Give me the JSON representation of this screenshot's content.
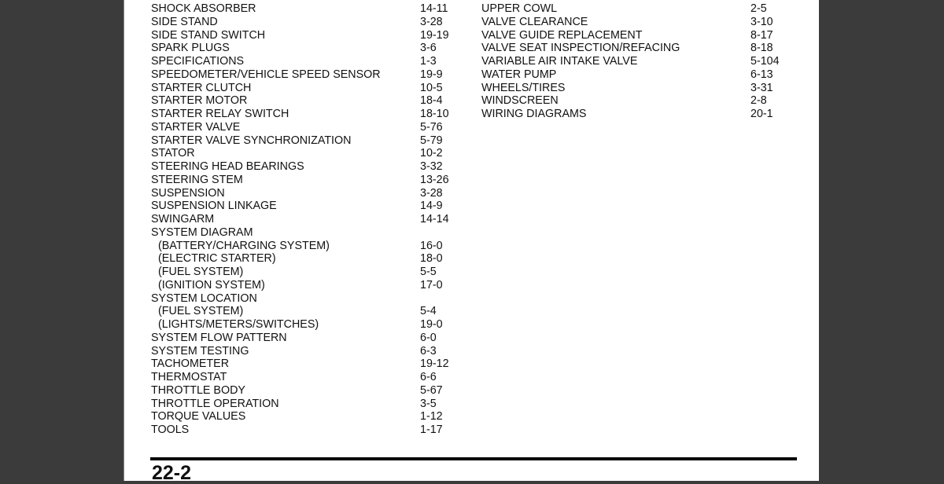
{
  "left_entries": [
    {
      "t": "SHOCK ABSORBER",
      "n": "14-11"
    },
    {
      "t": "SIDE STAND",
      "n": "3-28"
    },
    {
      "t": "SIDE STAND SWITCH",
      "n": "19-19"
    },
    {
      "t": "SPARK PLUGS",
      "n": "3-6"
    },
    {
      "t": "SPECIFICATIONS",
      "n": "1-3"
    },
    {
      "t": "SPEEDOMETER/VEHICLE SPEED SENSOR",
      "n": "19-9"
    },
    {
      "t": "STARTER CLUTCH",
      "n": "10-5"
    },
    {
      "t": "STARTER MOTOR",
      "n": "18-4"
    },
    {
      "t": "STARTER RELAY SWITCH",
      "n": "18-10"
    },
    {
      "t": "STARTER VALVE",
      "n": "5-76"
    },
    {
      "t": "STARTER VALVE SYNCHRONIZATION",
      "n": "5-79"
    },
    {
      "t": "STATOR",
      "n": "10-2"
    },
    {
      "t": "STEERING HEAD BEARINGS",
      "n": "3-32"
    },
    {
      "t": "STEERING STEM",
      "n": "13-26"
    },
    {
      "t": "SUSPENSION",
      "n": "3-28"
    },
    {
      "t": "SUSPENSION LINKAGE",
      "n": "14-9"
    },
    {
      "t": "SWINGARM",
      "n": "14-14"
    },
    {
      "t": "SYSTEM DIAGRAM",
      "n": ""
    },
    {
      "t": "(BATTERY/CHARGING SYSTEM)",
      "n": "16-0",
      "sub": true
    },
    {
      "t": "(ELECTRIC STARTER)",
      "n": "18-0",
      "sub": true
    },
    {
      "t": "(FUEL SYSTEM)",
      "n": "5-5",
      "sub": true
    },
    {
      "t": "(IGNITION SYSTEM)",
      "n": "17-0",
      "sub": true
    },
    {
      "t": "SYSTEM LOCATION",
      "n": ""
    },
    {
      "t": "(FUEL SYSTEM)",
      "n": "5-4",
      "sub": true
    },
    {
      "t": "(LIGHTS/METERS/SWITCHES)",
      "n": "19-0",
      "sub": true
    },
    {
      "t": "SYSTEM FLOW PATTERN",
      "n": "6-0"
    },
    {
      "t": "SYSTEM TESTING",
      "n": "6-3"
    },
    {
      "t": "TACHOMETER",
      "n": "19-12"
    },
    {
      "t": "THERMOSTAT",
      "n": "6-6"
    },
    {
      "t": "THROTTLE BODY",
      "n": "5-67"
    },
    {
      "t": "THROTTLE OPERATION",
      "n": "3-5"
    },
    {
      "t": "TORQUE VALUES",
      "n": "1-12"
    },
    {
      "t": "TOOLS",
      "n": "1-17"
    }
  ],
  "right_entries": [
    {
      "t": "UPPER COWL",
      "n": "2-5"
    },
    {
      "t": "VALVE CLEARANCE",
      "n": "3-10"
    },
    {
      "t": "VALVE GUIDE REPLACEMENT",
      "n": "8-17"
    },
    {
      "t": "VALVE SEAT INSPECTION/REFACING",
      "n": "8-18"
    },
    {
      "t": "VARIABLE AIR INTAKE VALVE",
      "n": "5-104"
    },
    {
      "t": "WATER PUMP",
      "n": "6-13"
    },
    {
      "t": "WHEELS/TIRES",
      "n": "3-31"
    },
    {
      "t": "WINDSCREEN",
      "n": "2-8"
    },
    {
      "t": "WIRING DIAGRAMS",
      "n": "20-1"
    }
  ],
  "footer": {
    "page_number": "22-2"
  }
}
